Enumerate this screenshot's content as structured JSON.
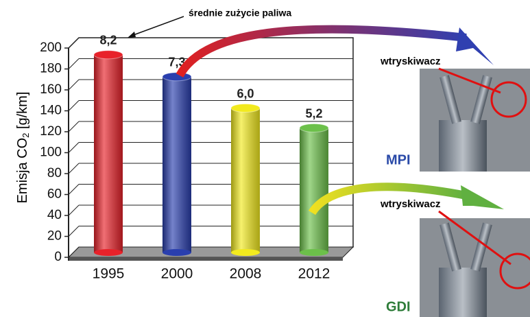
{
  "chart_data": {
    "type": "bar",
    "categories": [
      "1995",
      "2000",
      "2008",
      "2012"
    ],
    "values": [
      189,
      168,
      138,
      119
    ],
    "colors": [
      "#e8222a",
      "#2a3fae",
      "#f2ea1e",
      "#6cc04a"
    ],
    "fuel_consumption": [
      {
        "value": 8.2,
        "label": "8,2"
      },
      {
        "value": 7.3,
        "label": "7,3"
      },
      {
        "value": 6.0,
        "label": "6,0"
      },
      {
        "value": 5.2,
        "label": "5,2"
      }
    ],
    "y_label": {
      "text": "Emisja CO",
      "subscript": "2",
      "unit": " [g/km]"
    },
    "annotation": "średnie zużycie paliwa",
    "ylim": [
      0,
      200
    ],
    "yticks": [
      0,
      20,
      40,
      60,
      80,
      100,
      120,
      140,
      160,
      180,
      200
    ],
    "grid": true
  },
  "panels": [
    {
      "callout": "wtryskiwacz",
      "label": "MPI",
      "label_color": "#2a4aa8"
    },
    {
      "callout": "wtryskiwacz",
      "label": "GDI",
      "label_color": "#2f7d3a"
    }
  ]
}
